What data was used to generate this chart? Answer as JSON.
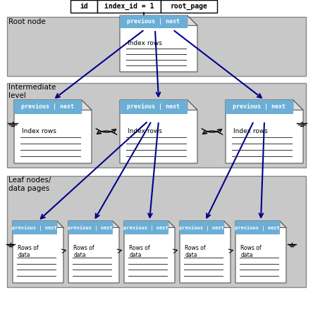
{
  "title": "",
  "bg_color": "#d3d3d3",
  "page_bg": "#ffffff",
  "header_bg": "#6baed6",
  "header_text_color": "#ffffff",
  "line_color": "#000000",
  "arrow_color": "#00008b",
  "section_labels": [
    "Root node",
    "Intermediate\nlevel",
    "Leaf nodes/\ndata pages"
  ],
  "table_header": [
    "id",
    "index_id = 1",
    "root_page"
  ],
  "page_header_text": "previous | next",
  "index_row_text": "Index rows",
  "data_row_text": "Rows of\ndata"
}
